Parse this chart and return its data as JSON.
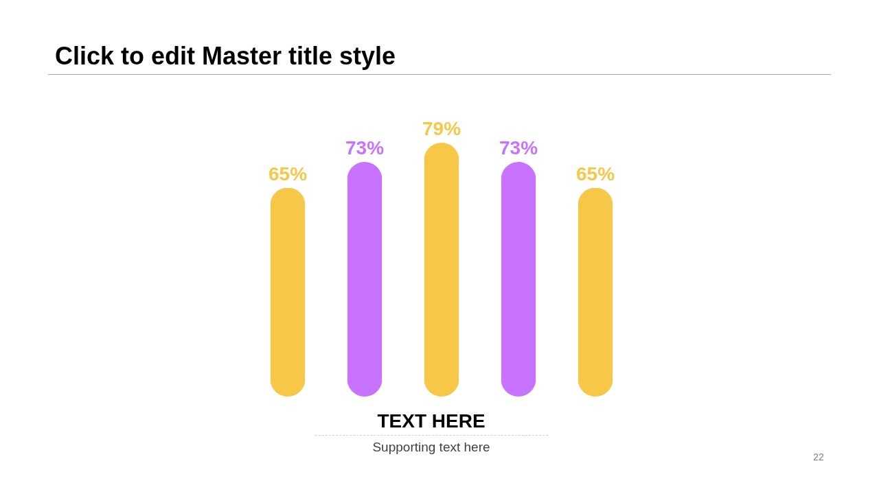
{
  "chart_data": {
    "type": "bar",
    "title": "Click to edit Master title style",
    "categories": [
      null,
      null,
      null,
      null,
      null
    ],
    "values": [
      65,
      73,
      79,
      73,
      65
    ],
    "colors": [
      "#f7c748",
      "#c873ff",
      "#f7c748",
      "#c873ff",
      "#f7c748"
    ],
    "value_labels": [
      "65%",
      "73%",
      "79%",
      "73%",
      "65%"
    ],
    "tick_labels": false,
    "annotations": [
      "TEXT HERE",
      "Supporting text here",
      "22"
    ]
  }
}
